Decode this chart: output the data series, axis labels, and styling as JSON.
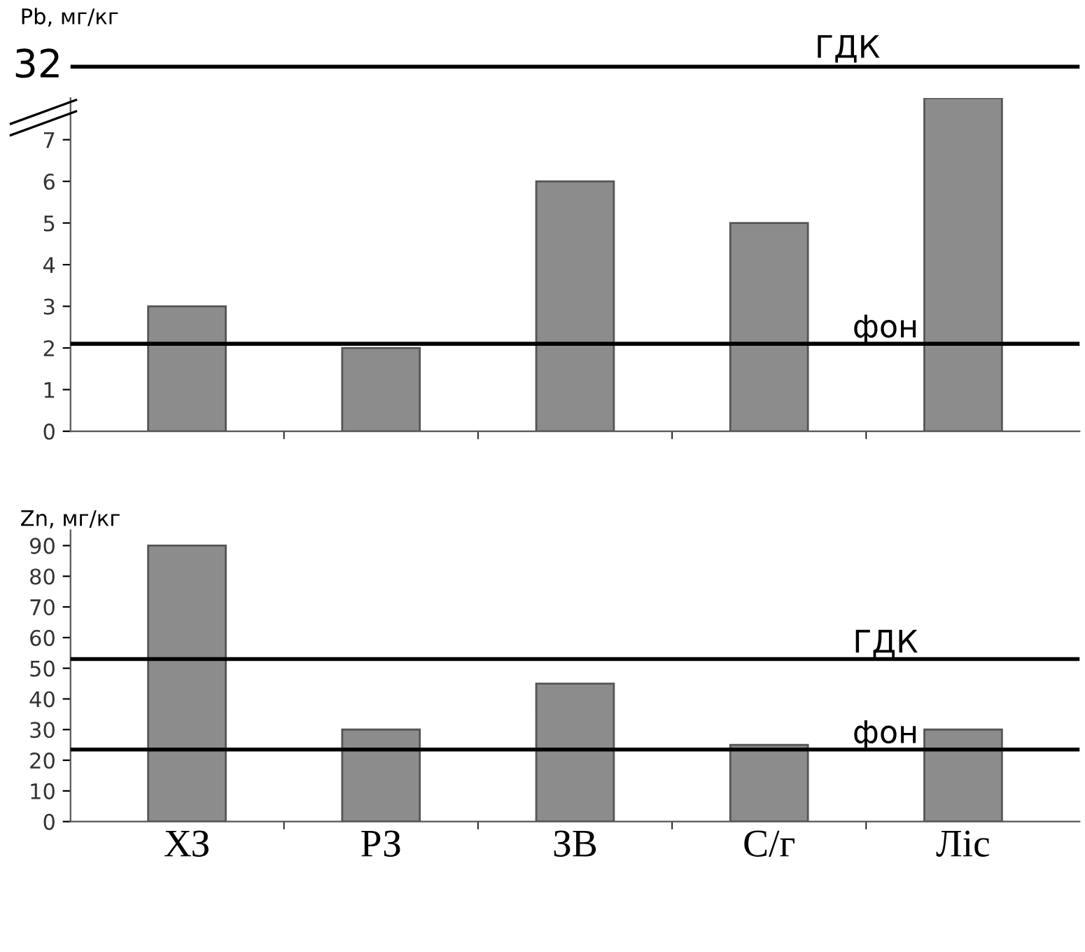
{
  "chart_data": [
    {
      "type": "other",
      "ylabel": "Pb, мг/кг",
      "annotations": [
        "32",
        "ГДК"
      ]
    },
    {
      "type": "bar",
      "categories": [
        null,
        null,
        null,
        null,
        null
      ],
      "values": [
        3,
        2,
        6,
        5,
        8
      ],
      "color": "#8c8c8c",
      "ylim": [
        0,
        8
      ],
      "yticks": [
        0,
        1,
        2,
        3,
        4,
        5,
        6,
        7
      ],
      "tick_labels": "y",
      "ref_lines": [
        {
          "axis": "y",
          "value": 2.1,
          "label": "фон",
          "color": "#000000"
        }
      ]
    },
    {
      "type": "bar",
      "ylabel": "Zn, мг/кг",
      "categories": [
        "ХЗ",
        "РЗ",
        "ЗВ",
        "С/г",
        "Ліс"
      ],
      "values": [
        90,
        30,
        45,
        25,
        30
      ],
      "color": "#8c8c8c",
      "ylim": [
        0,
        95
      ],
      "yticks": [
        0,
        10,
        20,
        30,
        40,
        50,
        60,
        70,
        80,
        90
      ],
      "ref_lines": [
        {
          "axis": "y",
          "value": 53,
          "label": "ГДК",
          "color": "#000000"
        },
        {
          "axis": "y",
          "value": 23.5,
          "label": "фон",
          "color": "#000000"
        }
      ]
    }
  ]
}
